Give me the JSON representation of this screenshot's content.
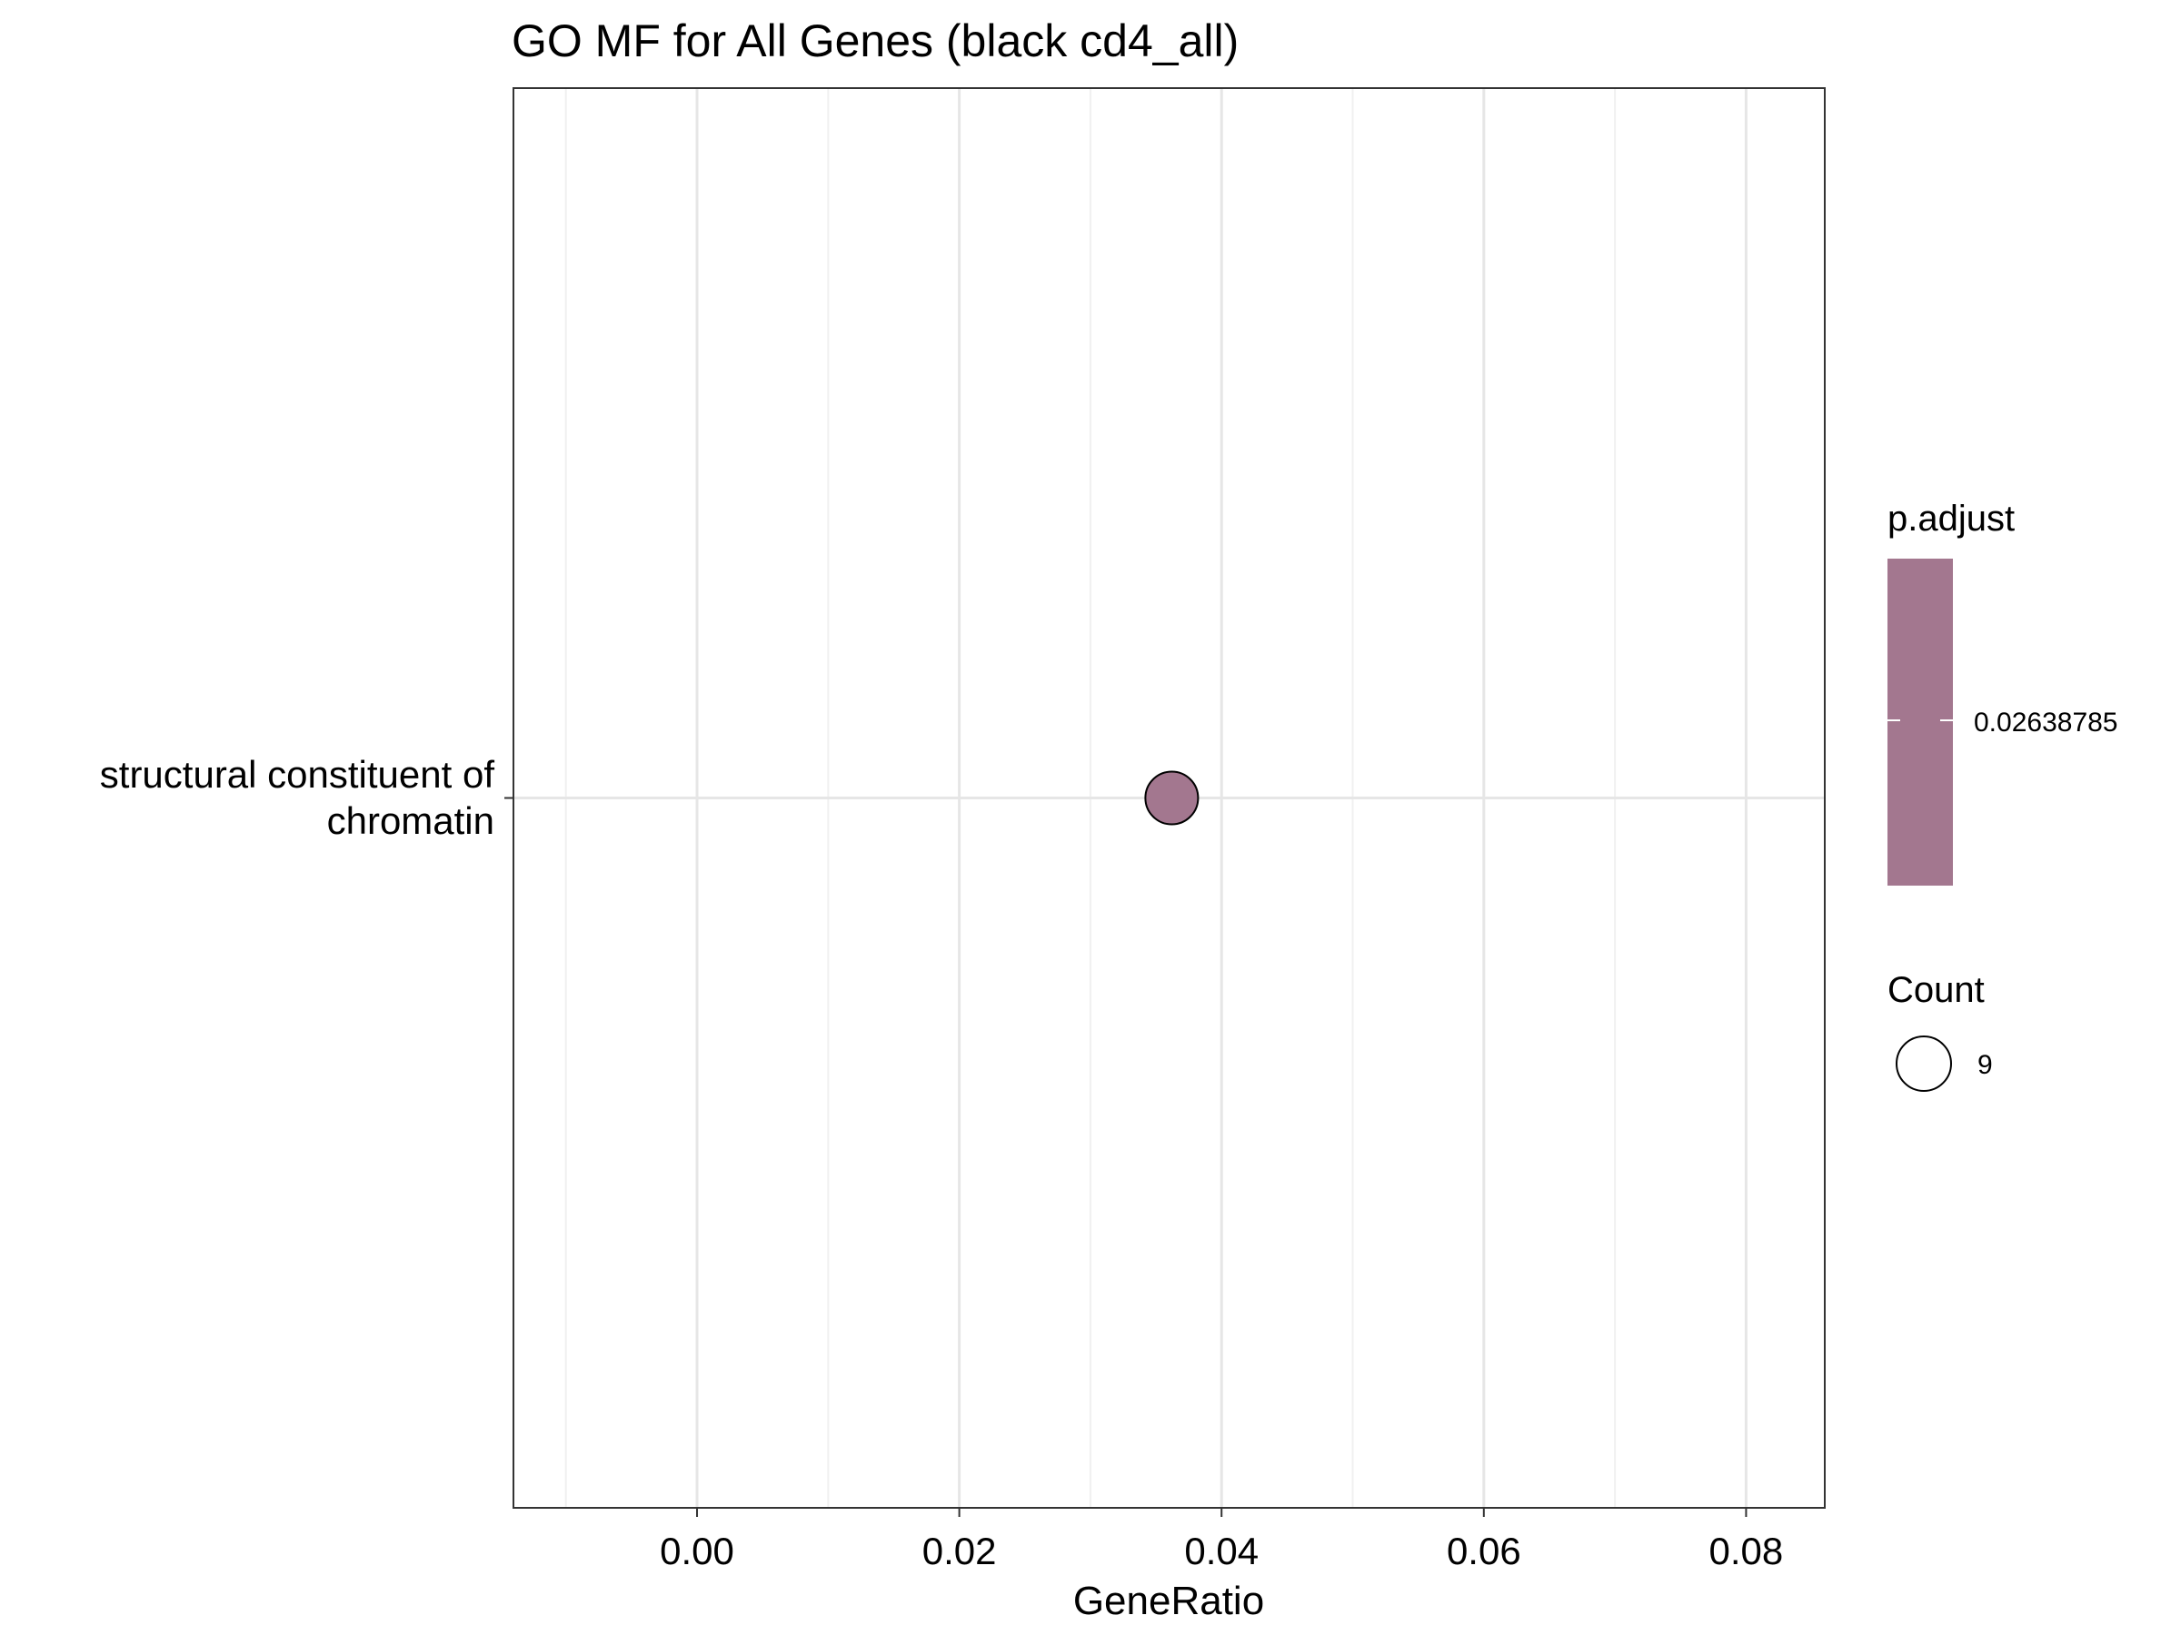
{
  "chart_data": {
    "type": "scatter",
    "title": "GO MF for All Genes (black cd4_all)",
    "xlabel": "GeneRatio",
    "ylabel": "",
    "xlim": [
      -0.014,
      0.086
    ],
    "x_ticks": [
      0.0,
      0.02,
      0.04,
      0.06,
      0.08
    ],
    "x_tick_labels": [
      "0.00",
      "0.02",
      "0.04",
      "0.06",
      "0.08"
    ],
    "categories": [
      "structural constituent of chromatin"
    ],
    "category_labels": [
      [
        "structural constituent of",
        "chromatin"
      ]
    ],
    "points": [
      {
        "category": "structural constituent of chromatin",
        "x": 0.0362,
        "count": 9,
        "p_adjust": 0.02638785,
        "color": "#a3778f"
      }
    ],
    "grid": true,
    "legend": {
      "position": "right",
      "color": {
        "title": "p.adjust",
        "label": "0.02638785",
        "color": "#a3778f"
      },
      "size": {
        "title": "Count",
        "label": "9"
      }
    }
  }
}
